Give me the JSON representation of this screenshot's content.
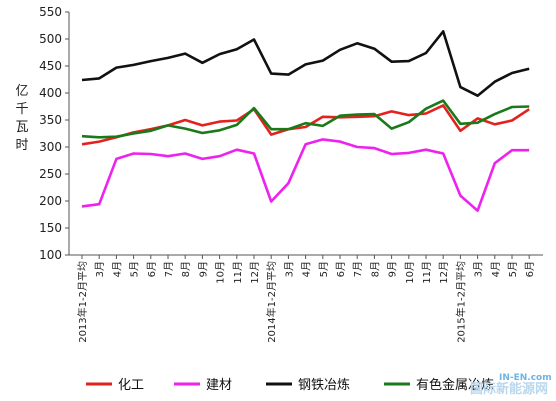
{
  "chart_data": {
    "type": "line",
    "ylabel": "亿千瓦时",
    "ylim": [
      100,
      550
    ],
    "yticks": [
      100,
      150,
      200,
      250,
      300,
      350,
      400,
      450,
      500,
      550
    ],
    "categories": [
      "2013年1-2月平均",
      "3月",
      "4月",
      "5月",
      "6月",
      "7月",
      "8月",
      "9月",
      "10月",
      "11月",
      "12月",
      "2014年1-2月平均",
      "3月",
      "4月",
      "5月",
      "6月",
      "7月",
      "8月",
      "9月",
      "10月",
      "11月",
      "12月",
      "2015年1-2月平均",
      "3月",
      "4月",
      "5月",
      "6月"
    ],
    "series": [
      {
        "name": "化工",
        "color": "#e3221e",
        "values": [
          305,
          310,
          318,
          327,
          333,
          340,
          350,
          340,
          347,
          349,
          370,
          323,
          333,
          337,
          356,
          355,
          356,
          357,
          366,
          359,
          362,
          377,
          330,
          353,
          342,
          349,
          370
        ]
      },
      {
        "name": "建材",
        "color": "#ee22ee",
        "values": [
          190,
          194,
          278,
          288,
          287,
          283,
          288,
          278,
          283,
          295,
          288,
          199,
          233,
          305,
          314,
          310,
          300,
          298,
          287,
          289,
          295,
          288,
          210,
          182,
          270,
          294,
          294
        ]
      },
      {
        "name": "钢铁冶炼",
        "color": "#111111",
        "values": [
          424,
          427,
          447,
          452,
          459,
          465,
          473,
          456,
          472,
          481,
          499,
          436,
          434,
          453,
          460,
          480,
          492,
          482,
          458,
          459,
          474,
          514,
          411,
          395,
          421,
          437,
          445
        ]
      },
      {
        "name": "有色金属冶炼",
        "color": "#1a7a1a",
        "values": [
          320,
          318,
          319,
          325,
          330,
          340,
          334,
          326,
          331,
          341,
          372,
          333,
          333,
          344,
          339,
          358,
          360,
          361,
          334,
          346,
          371,
          386,
          343,
          345,
          361,
          374,
          375
        ]
      }
    ],
    "grid": false,
    "legend": "bottom"
  },
  "watermark": {
    "line1": "IN-EN.com",
    "line2": "国际新能源网"
  }
}
